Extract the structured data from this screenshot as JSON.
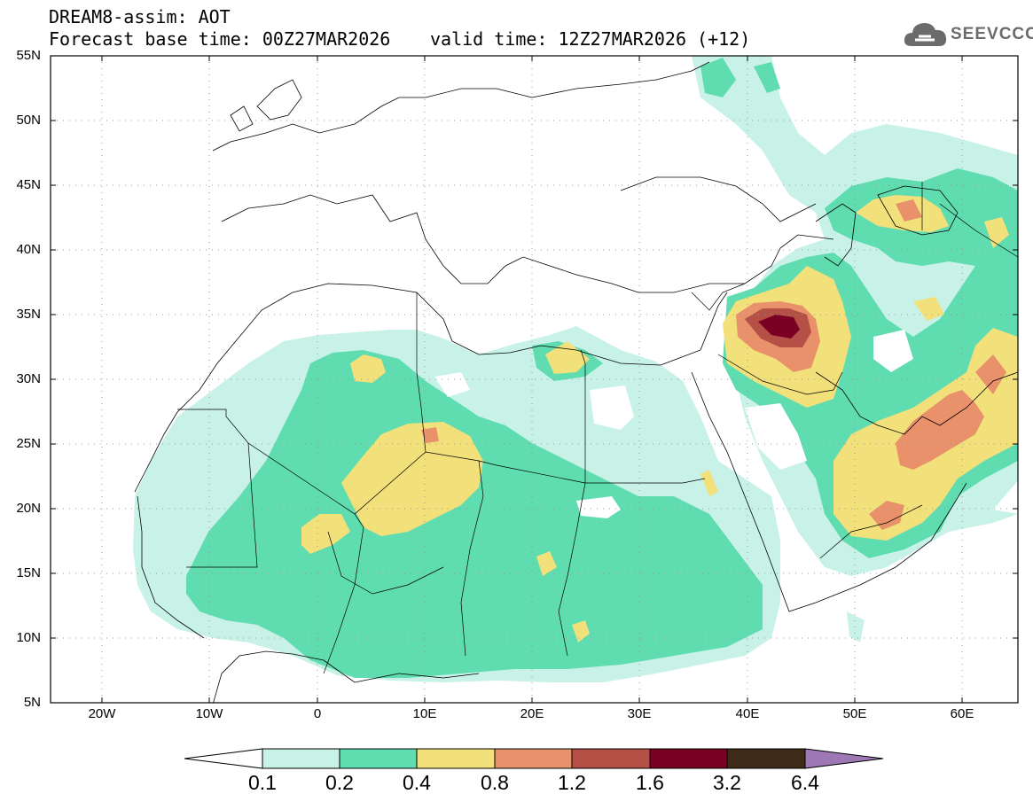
{
  "header": {
    "title_line1": "DREAM8-assim: AOT",
    "base_time": "Forecast base time: 00Z27MAR2026",
    "valid_time": "valid time: 12Z27MAR2026 (+12)"
  },
  "logo": {
    "text": "SEEVCCC",
    "icon": "cloud-icon"
  },
  "map": {
    "lon_range": [
      -25,
      65
    ],
    "lat_range": [
      5,
      55
    ],
    "grid": "dotted",
    "y_labels": [
      "55N",
      "50N",
      "45N",
      "40N",
      "35N",
      "30N",
      "25N",
      "20N",
      "15N",
      "10N",
      "5N"
    ],
    "x_labels": [
      "20W",
      "10W",
      "0",
      "10E",
      "20E",
      "30E",
      "40E",
      "50E",
      "60E"
    ],
    "projection": "lat-lon"
  },
  "colorbar": {
    "labels": [
      "0.1",
      "0.2",
      "0.4",
      "0.8",
      "1.2",
      "1.6",
      "3.2",
      "6.4"
    ],
    "colors": [
      "#c8f2e8",
      "#5fdcb0",
      "#f2e17a",
      "#e8916a",
      "#b45046",
      "#7a0024",
      "#3e2a18",
      "#9e77b5"
    ],
    "extend": "both"
  }
}
